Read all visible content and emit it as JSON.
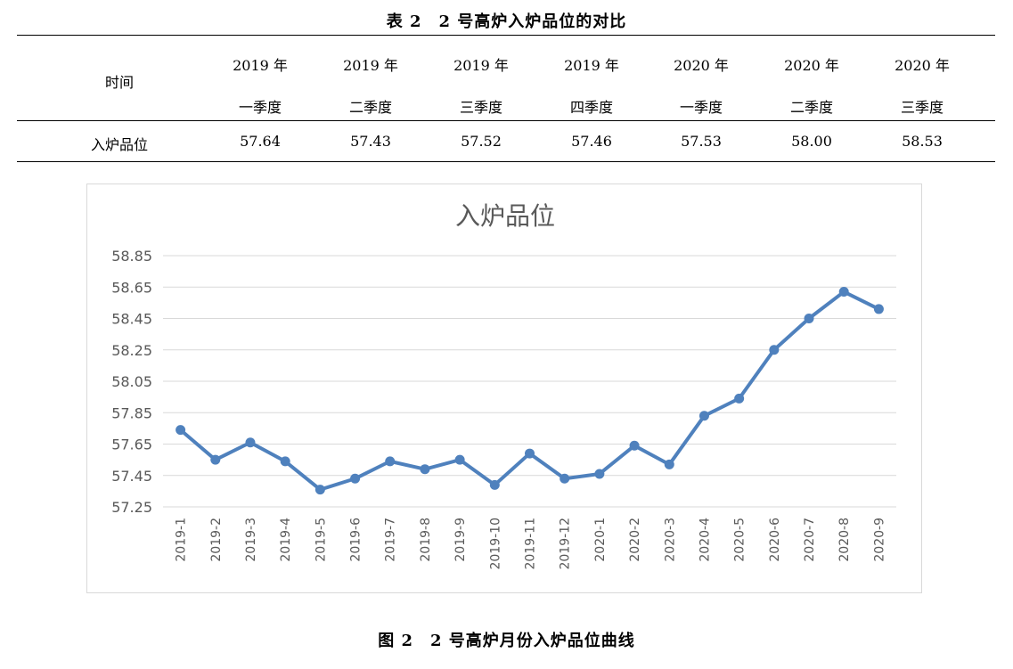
{
  "table": {
    "caption": "表 2　2 号高炉入炉品位的对比",
    "header_label": "时间",
    "row_label": "入炉品位",
    "columns": [
      {
        "year": "2019 年",
        "quarter": "一季度",
        "value": "57.64"
      },
      {
        "year": "2019 年",
        "quarter": "二季度",
        "value": "57.43"
      },
      {
        "year": "2019 年",
        "quarter": "三季度",
        "value": "57.52"
      },
      {
        "year": "2019 年",
        "quarter": "四季度",
        "value": "57.46"
      },
      {
        "year": "2020 年",
        "quarter": "一季度",
        "value": "57.53"
      },
      {
        "year": "2020 年",
        "quarter": "二季度",
        "value": "58.00"
      },
      {
        "year": "2020 年",
        "quarter": "三季度",
        "value": "58.53"
      }
    ]
  },
  "figure_caption": "图 2　2 号高炉月份入炉品位曲线",
  "chart_data": {
    "type": "line",
    "title": "入炉品位",
    "xlabel": "",
    "ylabel": "",
    "ylim": [
      57.25,
      58.85
    ],
    "yticks": [
      "57.25",
      "57.45",
      "57.65",
      "57.85",
      "58.05",
      "58.25",
      "58.45",
      "58.65",
      "58.85"
    ],
    "grid": true,
    "color": "#4f81bd",
    "categories": [
      "2019-1",
      "2019-2",
      "2019-3",
      "2019-4",
      "2019-5",
      "2019-6",
      "2019-7",
      "2019-8",
      "2019-9",
      "2019-10",
      "2019-11",
      "2019-12",
      "2020-1",
      "2020-2",
      "2020-3",
      "2020-4",
      "2020-5",
      "2020-6",
      "2020-7",
      "2020-8",
      "2020-9"
    ],
    "series": [
      {
        "values": [
          57.74,
          57.55,
          57.66,
          57.54,
          57.36,
          57.43,
          57.54,
          57.49,
          57.55,
          57.39,
          57.59,
          57.43,
          57.46,
          57.64,
          57.52,
          57.83,
          57.94,
          58.25,
          58.45,
          58.62,
          58.51
        ]
      }
    ]
  }
}
